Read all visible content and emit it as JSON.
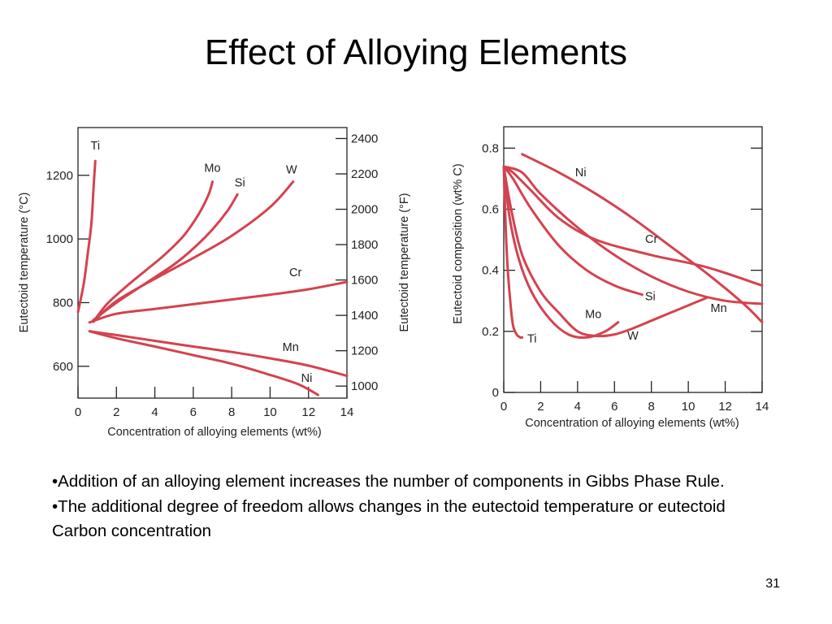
{
  "slide": {
    "title": "Effect of Alloying Elements",
    "bullets": [
      "•Addition of an alloying element increases the number of components in Gibbs Phase Rule.",
      "•The additional degree of freedom allows changes in the eutectoid temperature or eutectoid Carbon concentration"
    ],
    "page_number": "31"
  },
  "colors": {
    "curve": "#d4424f",
    "axis": "#222222"
  },
  "chart_data": [
    {
      "type": "line",
      "title": "",
      "xlabel": "Concentration of alloying elements (wt%)",
      "ylabel": "Eutectoid temperature (°C)",
      "ylabel_right": "Eutectoid temperature (°F)",
      "xlim": [
        0,
        14
      ],
      "ylim": [
        500,
        1350
      ],
      "x_ticks": [
        0,
        2,
        4,
        6,
        8,
        10,
        12,
        14
      ],
      "y_ticks": [
        600,
        800,
        1000,
        1200
      ],
      "y_ticks_right": [
        1000,
        1200,
        1400,
        1600,
        1800,
        2000,
        2200,
        2400
      ],
      "grid": false,
      "series": [
        {
          "name": "Ti",
          "x": [
            0,
            0.3,
            0.5,
            0.7,
            0.8,
            0.85,
            0.9
          ],
          "y": [
            770,
            860,
            950,
            1050,
            1150,
            1200,
            1245
          ]
        },
        {
          "name": "Mo",
          "x": [
            0.8,
            1.5,
            2.5,
            3.5,
            4.5,
            5.5,
            6.3,
            6.8,
            7
          ],
          "y": [
            740,
            795,
            850,
            900,
            950,
            1010,
            1080,
            1140,
            1180
          ]
        },
        {
          "name": "Si",
          "x": [
            0.8,
            2,
            3.5,
            5,
            6,
            7,
            7.8,
            8.3
          ],
          "y": [
            745,
            800,
            860,
            920,
            970,
            1030,
            1090,
            1140
          ]
        },
        {
          "name": "W",
          "x": [
            0.8,
            2,
            4,
            6,
            8,
            10,
            11.2
          ],
          "y": [
            740,
            805,
            875,
            940,
            1010,
            1100,
            1180
          ]
        },
        {
          "name": "Cr",
          "x": [
            0.6,
            2,
            4,
            6,
            8,
            10,
            12,
            14
          ],
          "y": [
            738,
            765,
            780,
            795,
            810,
            825,
            842,
            865
          ]
        },
        {
          "name": "Mn",
          "x": [
            0.6,
            2,
            4,
            6,
            8,
            10,
            12,
            14
          ],
          "y": [
            710,
            698,
            680,
            662,
            645,
            625,
            602,
            570
          ]
        },
        {
          "name": "Ni",
          "x": [
            0.6,
            2,
            4,
            6,
            8,
            10,
            11.5,
            12.5
          ],
          "y": [
            710,
            688,
            662,
            635,
            608,
            573,
            543,
            510
          ]
        }
      ]
    },
    {
      "type": "line",
      "title": "",
      "xlabel": "Concentration of alloying elements (wt%)",
      "ylabel": "Eutectoid composition (wt% C)",
      "xlim": [
        0,
        14
      ],
      "ylim": [
        0,
        0.87
      ],
      "x_ticks": [
        0,
        2,
        4,
        6,
        8,
        10,
        12,
        14
      ],
      "y_ticks": [
        0,
        0.2,
        0.4,
        0.6,
        0.8
      ],
      "grid": false,
      "series": [
        {
          "name": "Ni",
          "x": [
            1,
            3,
            5,
            7,
            9,
            11,
            13,
            14
          ],
          "y": [
            0.78,
            0.72,
            0.65,
            0.57,
            0.48,
            0.39,
            0.29,
            0.23
          ]
        },
        {
          "name": "Cr",
          "x": [
            0,
            0.5,
            1.5,
            3,
            5,
            8,
            11,
            14
          ],
          "y": [
            0.74,
            0.72,
            0.66,
            0.57,
            0.5,
            0.45,
            0.41,
            0.35
          ]
        },
        {
          "name": "Mn",
          "x": [
            0,
            1,
            2,
            4,
            6,
            8,
            10,
            12,
            14
          ],
          "y": [
            0.74,
            0.72,
            0.65,
            0.54,
            0.45,
            0.38,
            0.33,
            0.3,
            0.29
          ]
        },
        {
          "name": "Si",
          "x": [
            0,
            0.5,
            1.5,
            3,
            4.5,
            6,
            7.5
          ],
          "y": [
            0.74,
            0.7,
            0.6,
            0.48,
            0.4,
            0.35,
            0.32
          ]
        },
        {
          "name": "Mo",
          "x": [
            0,
            0.3,
            0.8,
            1.5,
            2.5,
            3.5,
            4.5,
            5.5,
            6.2
          ],
          "y": [
            0.74,
            0.58,
            0.44,
            0.33,
            0.24,
            0.19,
            0.18,
            0.2,
            0.23
          ]
        },
        {
          "name": "W",
          "x": [
            0,
            0.4,
            1,
            2,
            3,
            4,
            5,
            6,
            7,
            8,
            9,
            10,
            11
          ],
          "y": [
            0.74,
            0.6,
            0.45,
            0.33,
            0.26,
            0.2,
            0.185,
            0.19,
            0.21,
            0.235,
            0.26,
            0.285,
            0.31
          ]
        },
        {
          "name": "Ti",
          "x": [
            0,
            0.1,
            0.2,
            0.35,
            0.5,
            0.7,
            0.9,
            1
          ],
          "y": [
            0.74,
            0.55,
            0.42,
            0.3,
            0.22,
            0.19,
            0.18,
            0.18
          ]
        }
      ]
    }
  ]
}
